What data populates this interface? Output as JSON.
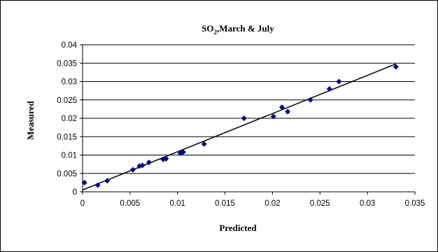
{
  "chart_data": {
    "type": "scatter",
    "title": "SO2,March & July",
    "title_main": "SO",
    "title_sub": "2",
    "title_rest": ",March & July",
    "xlabel": "Predicted",
    "ylabel": "Measured",
    "xlim": [
      0,
      0.035
    ],
    "ylim": [
      0,
      0.04
    ],
    "x_ticks": [
      "0",
      "0.005",
      "0.01",
      "0.015",
      "0.02",
      "0.025",
      "0.03",
      "0.035"
    ],
    "y_ticks": [
      "0",
      "0.005",
      "0.01",
      "0.015",
      "0.02",
      "0.025",
      "0.03",
      "0.035",
      "0.04"
    ],
    "grid": "horizontal",
    "legend": "none",
    "marker_color": "#00008B",
    "trendline_color": "#000000",
    "series": [
      {
        "x": [
          0.0002,
          0.0016,
          0.0026,
          0.0053,
          0.006,
          0.0063,
          0.007,
          0.0085,
          0.0088,
          0.0103,
          0.0106,
          0.0128,
          0.017,
          0.0201,
          0.021,
          0.0216,
          0.024,
          0.026,
          0.027,
          0.033
        ],
        "y": [
          0.0025,
          0.0018,
          0.003,
          0.006,
          0.007,
          0.0072,
          0.008,
          0.0088,
          0.009,
          0.0105,
          0.0108,
          0.013,
          0.02,
          0.0205,
          0.023,
          0.0218,
          0.025,
          0.028,
          0.03,
          0.034
        ]
      }
    ],
    "trendline": {
      "x": [
        0,
        0.033
      ],
      "y": [
        0.0005,
        0.0348
      ]
    }
  }
}
